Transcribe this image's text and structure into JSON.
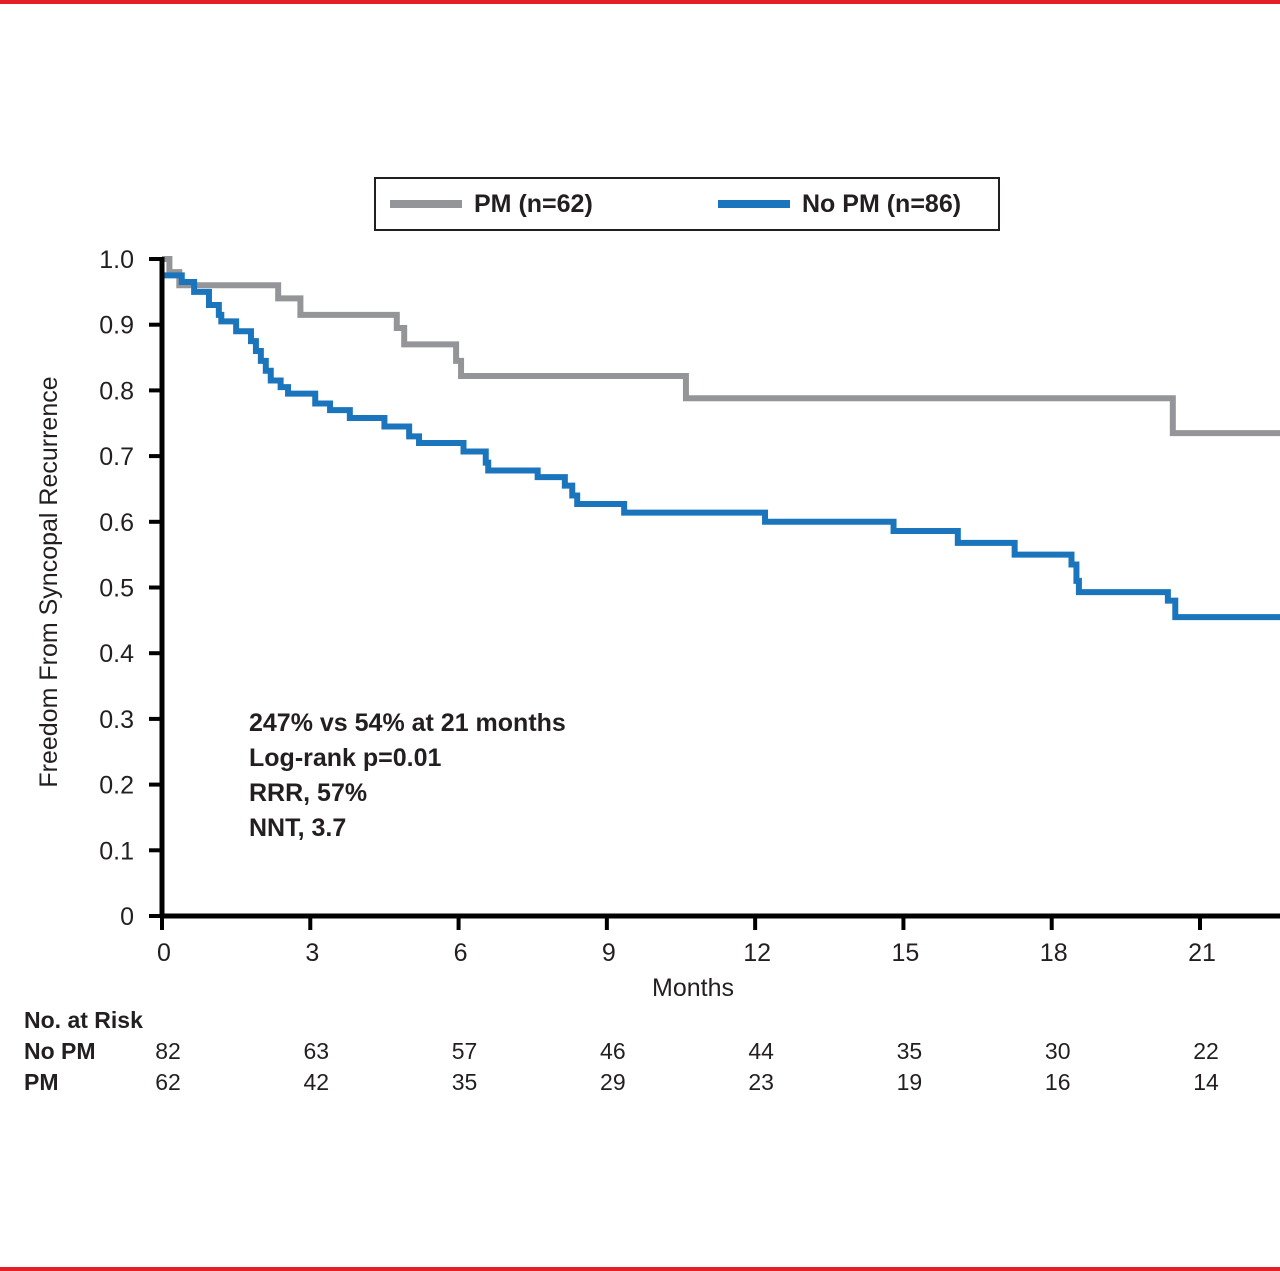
{
  "chart_data": {
    "type": "line",
    "subtype": "kaplan-meier-step",
    "title": "",
    "xlabel": "Months",
    "ylabel": "Freedom From Syncopal Recurrence",
    "xlim": [
      0,
      23.5
    ],
    "ylim": [
      0,
      1.0
    ],
    "x_ticks": [
      0,
      3,
      6,
      9,
      12,
      15,
      18,
      21
    ],
    "x_tick_labels": [
      "0",
      "3",
      "6",
      "9",
      "12",
      "15",
      "18",
      "21"
    ],
    "y_ticks": [
      0,
      0.1,
      0.2,
      0.3,
      0.4,
      0.5,
      0.6,
      0.7,
      0.8,
      0.9,
      1.0
    ],
    "y_tick_labels": [
      "0",
      "0.1",
      "0.2",
      "0.3",
      "0.4",
      "0.5",
      "0.6",
      "0.7",
      "0.8",
      "0.9",
      "1.0"
    ],
    "grid": false,
    "legend_position": "top-center",
    "series": [
      {
        "name": "PM (n=62)",
        "color": "#939598",
        "steps": [
          [
            0,
            1.0
          ],
          [
            0.15,
            0.98
          ],
          [
            0.35,
            0.96
          ],
          [
            2.35,
            0.94
          ],
          [
            2.8,
            0.915
          ],
          [
            4.75,
            0.895
          ],
          [
            4.9,
            0.87
          ],
          [
            5.95,
            0.845
          ],
          [
            6.05,
            0.822
          ],
          [
            10.6,
            0.788
          ],
          [
            20.45,
            0.735
          ],
          [
            23.5,
            0.735
          ]
        ]
      },
      {
        "name": "No PM (n=86)",
        "color": "#1b75bc",
        "steps": [
          [
            0,
            0.975
          ],
          [
            0.4,
            0.965
          ],
          [
            0.65,
            0.95
          ],
          [
            0.95,
            0.93
          ],
          [
            1.15,
            0.915
          ],
          [
            1.2,
            0.905
          ],
          [
            1.5,
            0.89
          ],
          [
            1.8,
            0.875
          ],
          [
            1.9,
            0.86
          ],
          [
            2.0,
            0.845
          ],
          [
            2.1,
            0.83
          ],
          [
            2.2,
            0.815
          ],
          [
            2.4,
            0.805
          ],
          [
            2.55,
            0.795
          ],
          [
            3.1,
            0.78
          ],
          [
            3.4,
            0.77
          ],
          [
            3.8,
            0.758
          ],
          [
            4.5,
            0.745
          ],
          [
            5.0,
            0.73
          ],
          [
            5.2,
            0.72
          ],
          [
            6.1,
            0.707
          ],
          [
            6.55,
            0.69
          ],
          [
            6.6,
            0.678
          ],
          [
            7.6,
            0.668
          ],
          [
            8.15,
            0.655
          ],
          [
            8.3,
            0.64
          ],
          [
            8.4,
            0.627
          ],
          [
            9.35,
            0.614
          ],
          [
            12.2,
            0.6
          ],
          [
            14.8,
            0.586
          ],
          [
            16.1,
            0.568
          ],
          [
            17.25,
            0.55
          ],
          [
            18.4,
            0.535
          ],
          [
            18.5,
            0.51
          ],
          [
            18.55,
            0.493
          ],
          [
            20.35,
            0.48
          ],
          [
            20.5,
            0.455
          ],
          [
            23.5,
            0.455
          ]
        ]
      }
    ],
    "annotations": [
      "247% vs 54% at 21 months",
      "Log-rank p=0.01",
      "RRR, 57%",
      "NNT, 3.7"
    ],
    "risk_table": {
      "title": "No. at Risk",
      "times": [
        0,
        3,
        6,
        9,
        12,
        15,
        18,
        21
      ],
      "rows": [
        {
          "label": "No PM",
          "values": [
            "82",
            "63",
            "57",
            "46",
            "44",
            "35",
            "30",
            "22"
          ]
        },
        {
          "label": "PM",
          "values": [
            "62",
            "42",
            "35",
            "29",
            "23",
            "19",
            "16",
            "14"
          ]
        }
      ]
    }
  },
  "legend": {
    "items": [
      {
        "label": "PM (n=62)",
        "color": "#939598"
      },
      {
        "label": "No PM (n=86)",
        "color": "#1b75bc"
      }
    ]
  },
  "frame": {
    "accent_color": "#e31e24"
  }
}
